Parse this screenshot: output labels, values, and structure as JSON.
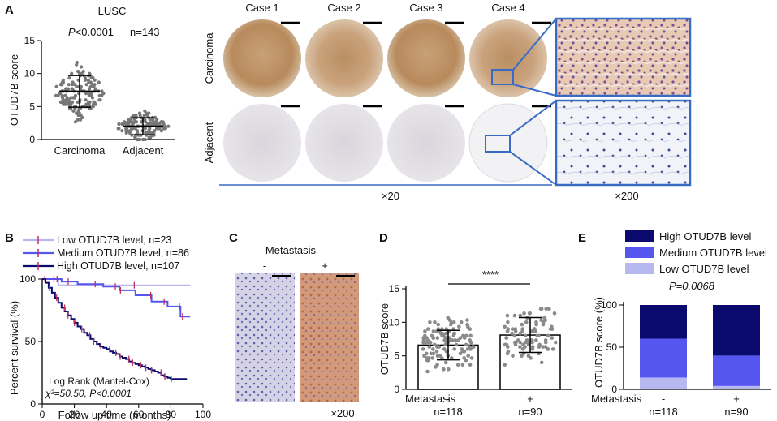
{
  "panels": {
    "a": "A",
    "b": "B",
    "c": "C",
    "d": "D",
    "e": "E"
  },
  "panel_a": {
    "title": "LUSC",
    "pvalue_prefix": "P",
    "pvalue_rest": "<0.0001",
    "n": "n=143",
    "cases": [
      "Case 1",
      "Case 2",
      "Case 3",
      "Case 4"
    ],
    "row_labels": [
      "Carcinoma",
      "Adjacent"
    ],
    "mag_low": "×20",
    "mag_high": "×200"
  },
  "panel_b_text": {
    "stat_line1": "Log Rank (Mantel-Cox)",
    "stat_line2": "χ²=50.50, P<0.0001"
  },
  "panel_c": {
    "title": "Metastasis",
    "neg": "-",
    "pos": "+",
    "mag": "×200"
  },
  "panel_d_text": {
    "sig": "****",
    "xrow_label": "Metastasis",
    "neg": "-",
    "pos": "+",
    "n_neg": "n=118",
    "n_pos": "n=90"
  },
  "panel_e_text": {
    "pvalue": "P=0.0068",
    "xrow_label": "Metastasis",
    "neg": "-",
    "pos": "+",
    "n_neg": "n=118",
    "n_pos": "n=90"
  },
  "colors": {
    "high": "#0a0a6e",
    "medium": "#5555f0",
    "low": "#b8b8f0",
    "tan": "#c49a6c",
    "frame_blue": "#3a6bc4"
  },
  "chart_data": [
    {
      "id": "A",
      "type": "scatter",
      "ylabel": "OTUD7B score",
      "categories": [
        "Carcinoma",
        "Adjacent"
      ],
      "ylim": [
        0,
        15
      ],
      "yticks": [
        0,
        5,
        10,
        15
      ],
      "series": [
        {
          "mean": 7.3,
          "sd": 2.4
        },
        {
          "mean": 2.0,
          "sd": 1.3
        }
      ]
    },
    {
      "id": "B",
      "type": "line",
      "xlabel": "Follow up time (months)",
      "ylabel": "Percent survival (%)",
      "xlim": [
        0,
        100
      ],
      "ylim": [
        0,
        100
      ],
      "xticks": [
        0,
        20,
        40,
        60,
        80,
        100
      ],
      "yticks": [
        0,
        50,
        100
      ],
      "series": [
        {
          "name": "Low OTUD7B level, n=23",
          "color": "#b8b8f0",
          "x": [
            0,
            10,
            92
          ],
          "y": [
            100,
            95,
            95
          ]
        },
        {
          "name": "Medium OTUD7B level, n=86",
          "color": "#5555f0",
          "x": [
            0,
            12,
            22,
            38,
            48,
            58,
            68,
            78,
            86,
            92
          ],
          "y": [
            100,
            98,
            96,
            94,
            91,
            87,
            82,
            78,
            70,
            70
          ]
        },
        {
          "name": "High OTUD7B level, n=107",
          "color": "#0a0a6e",
          "x": [
            0,
            2,
            4,
            6,
            8,
            10,
            12,
            14,
            16,
            18,
            20,
            22,
            24,
            26,
            28,
            30,
            32,
            34,
            36,
            38,
            40,
            42,
            44,
            46,
            48,
            50,
            52,
            54,
            56,
            58,
            60,
            62,
            64,
            66,
            68,
            70,
            72,
            74,
            76,
            78,
            80,
            85,
            90
          ],
          "y": [
            100,
            97,
            93,
            89,
            85,
            81,
            77,
            74,
            71,
            68,
            65,
            62,
            60,
            57,
            55,
            52,
            50,
            48,
            46,
            45,
            44,
            42,
            41,
            40,
            38,
            37,
            36,
            34,
            33,
            32,
            31,
            30,
            29,
            28,
            27,
            26,
            25,
            23,
            22,
            21,
            20,
            20,
            20
          ]
        }
      ]
    },
    {
      "id": "D",
      "type": "bar",
      "ylabel": "OTUD7B score",
      "categories": [
        "-",
        "+"
      ],
      "values": [
        6.6,
        8.1
      ],
      "sd": [
        2.2,
        2.6
      ],
      "ylim": [
        0,
        15
      ],
      "yticks": [
        0,
        5,
        10,
        15
      ]
    },
    {
      "id": "E",
      "type": "bar",
      "ylabel": "OTUD7B score (%)",
      "categories": [
        "-",
        "+"
      ],
      "ylim": [
        0,
        100
      ],
      "yticks": [
        0,
        50,
        100
      ],
      "series": [
        {
          "name": "Low OTUD7B level",
          "values": [
            14,
            4
          ]
        },
        {
          "name": "Medium OTUD7B level",
          "values": [
            46,
            36
          ]
        },
        {
          "name": "High OTUD7B level",
          "values": [
            40,
            60
          ]
        }
      ]
    }
  ]
}
